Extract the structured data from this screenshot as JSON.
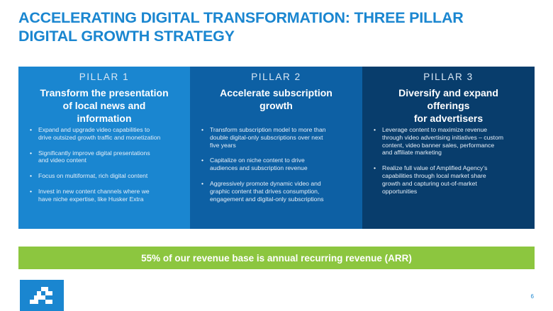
{
  "title": {
    "line1": "ACCELERATING DIGITAL TRANSFORMATION: THREE PILLAR",
    "line2": "DIGITAL GROWTH STRATEGY"
  },
  "pillars": [
    {
      "label": "PILLAR 1",
      "heading": "Transform the presentation\nof local news and\ninformation",
      "bullets": [
        "Expand and upgrade video capabilities to\ndrive outsized growth traffic and monetization",
        "Significantly improve digital presentations\nand video content",
        "Focus on multiformat, rich digital content",
        "Invest in new content channels where we\nhave niche expertise, like Husker Extra"
      ]
    },
    {
      "label": "PILLAR 2",
      "heading": "Accelerate subscription\ngrowth",
      "bullets": [
        "Transform subscription model to more than\ndouble digital-only subscriptions over next\nfive years",
        "Capitalize on niche content to drive\naudiences and subscription revenue",
        "Aggressively promote dynamic video and\ngraphic content that drives consumption,\nengagement and digital-only subscriptions"
      ]
    },
    {
      "label": "PILLAR 3",
      "heading": "Diversify and expand\nofferings\nfor advertisers",
      "bullets": [
        "Leverage content to maximize revenue\nthrough video advertising initiatives –  custom\ncontent, video banner sales, performance\nand affiliate marketing",
        "Realize full value of Amplified Agency’s\ncapabilities  through local market share\ngrowth and capturing out-of-market\nopportunities"
      ]
    }
  ],
  "arr_banner": "55% of our revenue base is annual recurring revenue (ARR)",
  "page_number": "6",
  "colors": {
    "accent_blue": "#1a86d0",
    "mid_blue": "#0d60a4",
    "navy": "#083d6c",
    "green": "#8cc63f"
  },
  "logo_icon": "company-logo-icon"
}
